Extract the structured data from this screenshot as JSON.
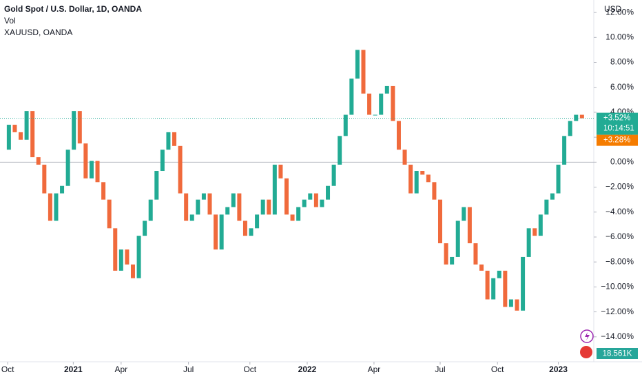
{
  "chart_data": {
    "type": "candlestick",
    "title": "Gold Spot / U.S. Dollar, 1D, OANDA",
    "indicator": "Vol",
    "comparison": "XAUUSD, OANDA",
    "y_axis_label": "USD",
    "up_color": "#22ab94",
    "down_color": "#f06a3c",
    "values": [
      1.0,
      3.0,
      2.4,
      1.8,
      4.1,
      0.4,
      -0.2,
      -2.5,
      -4.7,
      -2.5,
      -1.9,
      1.0,
      4.1,
      1.5,
      -1.3,
      0.1,
      -1.6,
      -3.0,
      -5.3,
      -8.7,
      -7.0,
      -8.2,
      -9.3,
      -5.9,
      -4.7,
      -3.0,
      -0.7,
      1.0,
      2.4,
      1.3,
      -2.5,
      -4.7,
      -4.2,
      -3.0,
      -2.5,
      -4.2,
      -7.0,
      -4.2,
      -3.6,
      -2.5,
      -4.7,
      -5.9,
      -5.3,
      -4.2,
      -3.0,
      -4.2,
      -0.2,
      -1.3,
      -4.2,
      -4.7,
      -3.6,
      -3.0,
      -2.5,
      -3.6,
      -3.0,
      -1.9,
      -0.2,
      2.1,
      3.8,
      6.7,
      9.0,
      5.5,
      3.8,
      3.8,
      5.5,
      6.1,
      3.3,
      1.0,
      -0.2,
      -2.5,
      -0.7,
      -1.0,
      -1.6,
      -3.0,
      -6.5,
      -8.2,
      -7.6,
      -4.7,
      -3.6,
      -6.5,
      -8.2,
      -8.7,
      -11.0,
      -9.3,
      -8.7,
      -11.6,
      -11.0,
      -11.9,
      -7.6,
      -5.3,
      -5.9,
      -4.2,
      -3.0,
      -2.5,
      -0.2,
      2.1,
      3.3,
      3.8,
      3.52
    ],
    "xlim": [
      -0.5,
      100
    ],
    "xticks": [
      {
        "value": 0.8,
        "label": "Oct"
      },
      {
        "value": 11.9,
        "label": "2021"
      },
      {
        "value": 20,
        "label": "Apr"
      },
      {
        "value": 31.4,
        "label": "Jul"
      },
      {
        "value": 41.8,
        "label": "Oct"
      },
      {
        "value": 51.5,
        "label": "2022"
      },
      {
        "value": 62.8,
        "label": "Apr"
      },
      {
        "value": 74,
        "label": "Jul"
      },
      {
        "value": 83.7,
        "label": "Oct"
      },
      {
        "value": 94,
        "label": "2023"
      }
    ],
    "ylim": [
      -16.0,
      13.0
    ],
    "yticks": [
      {
        "value": 12,
        "label": "12.00%"
      },
      {
        "value": 10,
        "label": "10.00%"
      },
      {
        "value": 8,
        "label": "8.00%"
      },
      {
        "value": 6,
        "label": "6.00%"
      },
      {
        "value": 4,
        "label": "4.00%"
      },
      {
        "value": 2,
        "label": "2.00%"
      },
      {
        "value": 0,
        "label": "0.00%"
      },
      {
        "value": -2,
        "label": "−2.00%"
      },
      {
        "value": -4,
        "label": "−4.00%"
      },
      {
        "value": -6,
        "label": "−6.00%"
      },
      {
        "value": -8,
        "label": "−8.00%"
      },
      {
        "value": -10,
        "label": "−10.00%"
      },
      {
        "value": -12,
        "label": "−12.00%"
      },
      {
        "value": -14,
        "label": "−14.00%"
      }
    ],
    "last": {
      "value": 3.52,
      "label": "+3.52%"
    },
    "countdown": "10:14:51",
    "compare_last": {
      "value": 3.28,
      "label": "+3.28%"
    },
    "volume_label": "18.561K"
  }
}
